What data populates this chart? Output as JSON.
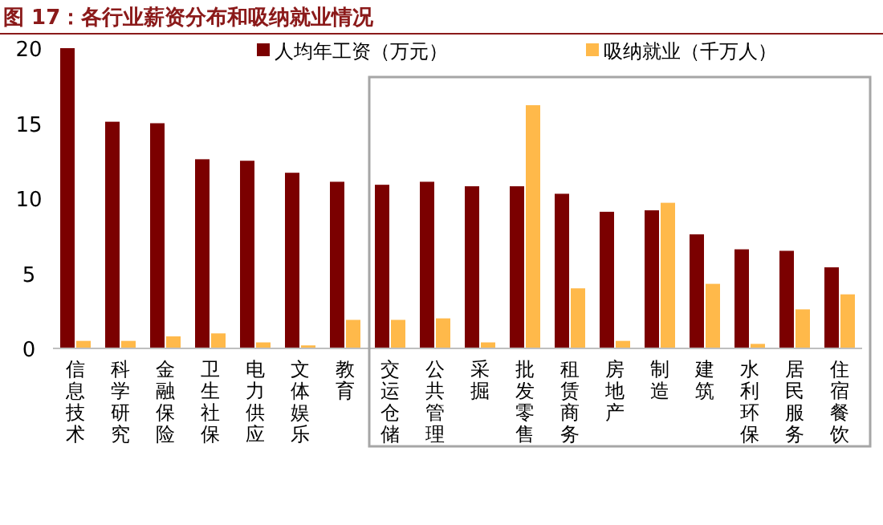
{
  "chart_data": {
    "type": "bar",
    "title": "图 17：各行业薪资分布和吸纳就业情况",
    "categories": [
      "信息技术",
      "科学研究",
      "金融保险",
      "卫生社保",
      "电力供应",
      "文体娱乐",
      "教育",
      "交运仓储",
      "公共管理",
      "采掘",
      "批发零售",
      "租赁商务",
      "房地产",
      "制造",
      "建筑",
      "水利环保",
      "居民服务",
      "住宿餐饮"
    ],
    "series": [
      {
        "name": "人均年工资（万元）",
        "color": "#7b0000",
        "values": [
          20.0,
          15.1,
          15.0,
          12.6,
          12.5,
          11.7,
          11.1,
          10.9,
          11.1,
          10.8,
          10.8,
          10.3,
          9.1,
          9.2,
          7.6,
          6.6,
          6.5,
          5.4
        ]
      },
      {
        "name": "吸纳就业（千万人）",
        "color": "#ffb94a",
        "values": [
          0.5,
          0.5,
          0.8,
          1.0,
          0.4,
          0.2,
          1.9,
          1.9,
          2.0,
          0.4,
          16.2,
          4.0,
          0.5,
          9.7,
          4.3,
          0.3,
          2.6,
          3.6
        ]
      }
    ],
    "ylim": [
      0,
      20
    ],
    "yticks": [
      0,
      5,
      10,
      15,
      20
    ],
    "legend": "top"
  }
}
